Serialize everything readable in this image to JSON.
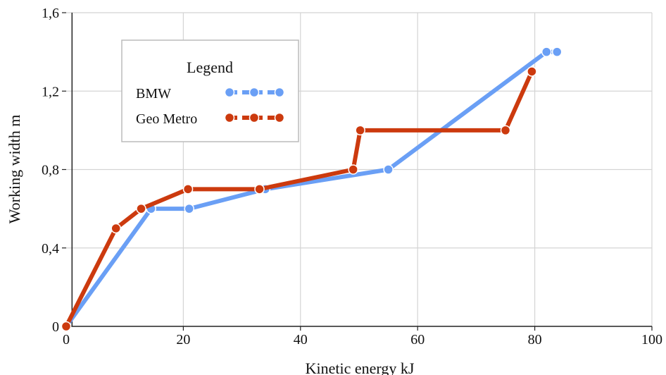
{
  "chart_data": {
    "type": "line",
    "title": "",
    "xlabel": "Kinetic energy kJ",
    "ylabel": "Working width m",
    "xlim": [
      0,
      100
    ],
    "ylim": [
      0,
      1.6
    ],
    "x_ticks": [
      0,
      20,
      40,
      60,
      80,
      100
    ],
    "x_tick_labels": [
      "0",
      "20",
      "40",
      "60",
      "80",
      "100"
    ],
    "y_ticks": [
      0,
      0.4,
      0.8,
      1.2,
      1.6
    ],
    "y_tick_labels": [
      "0",
      "0,4",
      "0,8",
      "1,2",
      "1,6"
    ],
    "grid": true,
    "legend": {
      "title": "Legend",
      "placement": "top-left"
    },
    "series": [
      {
        "name": "BMW",
        "color": "#6a9ff5",
        "points": [
          {
            "x": 0,
            "y": 0
          },
          {
            "x": 14.5,
            "y": 0.6
          },
          {
            "x": 21,
            "y": 0.6
          },
          {
            "x": 34,
            "y": 0.7
          },
          {
            "x": 55,
            "y": 0.8
          },
          {
            "x": 82,
            "y": 1.4
          },
          {
            "x": 83.8,
            "y": 1.4
          }
        ]
      },
      {
        "name": "Geo Metro",
        "color": "#cc3a0e",
        "points": [
          {
            "x": 0,
            "y": 0
          },
          {
            "x": 8.5,
            "y": 0.5
          },
          {
            "x": 12.8,
            "y": 0.6
          },
          {
            "x": 20.8,
            "y": 0.7
          },
          {
            "x": 33,
            "y": 0.7
          },
          {
            "x": 49,
            "y": 0.8
          },
          {
            "x": 50.2,
            "y": 1.0
          },
          {
            "x": 75,
            "y": 1.0
          },
          {
            "x": 79.5,
            "y": 1.3
          }
        ]
      }
    ]
  }
}
